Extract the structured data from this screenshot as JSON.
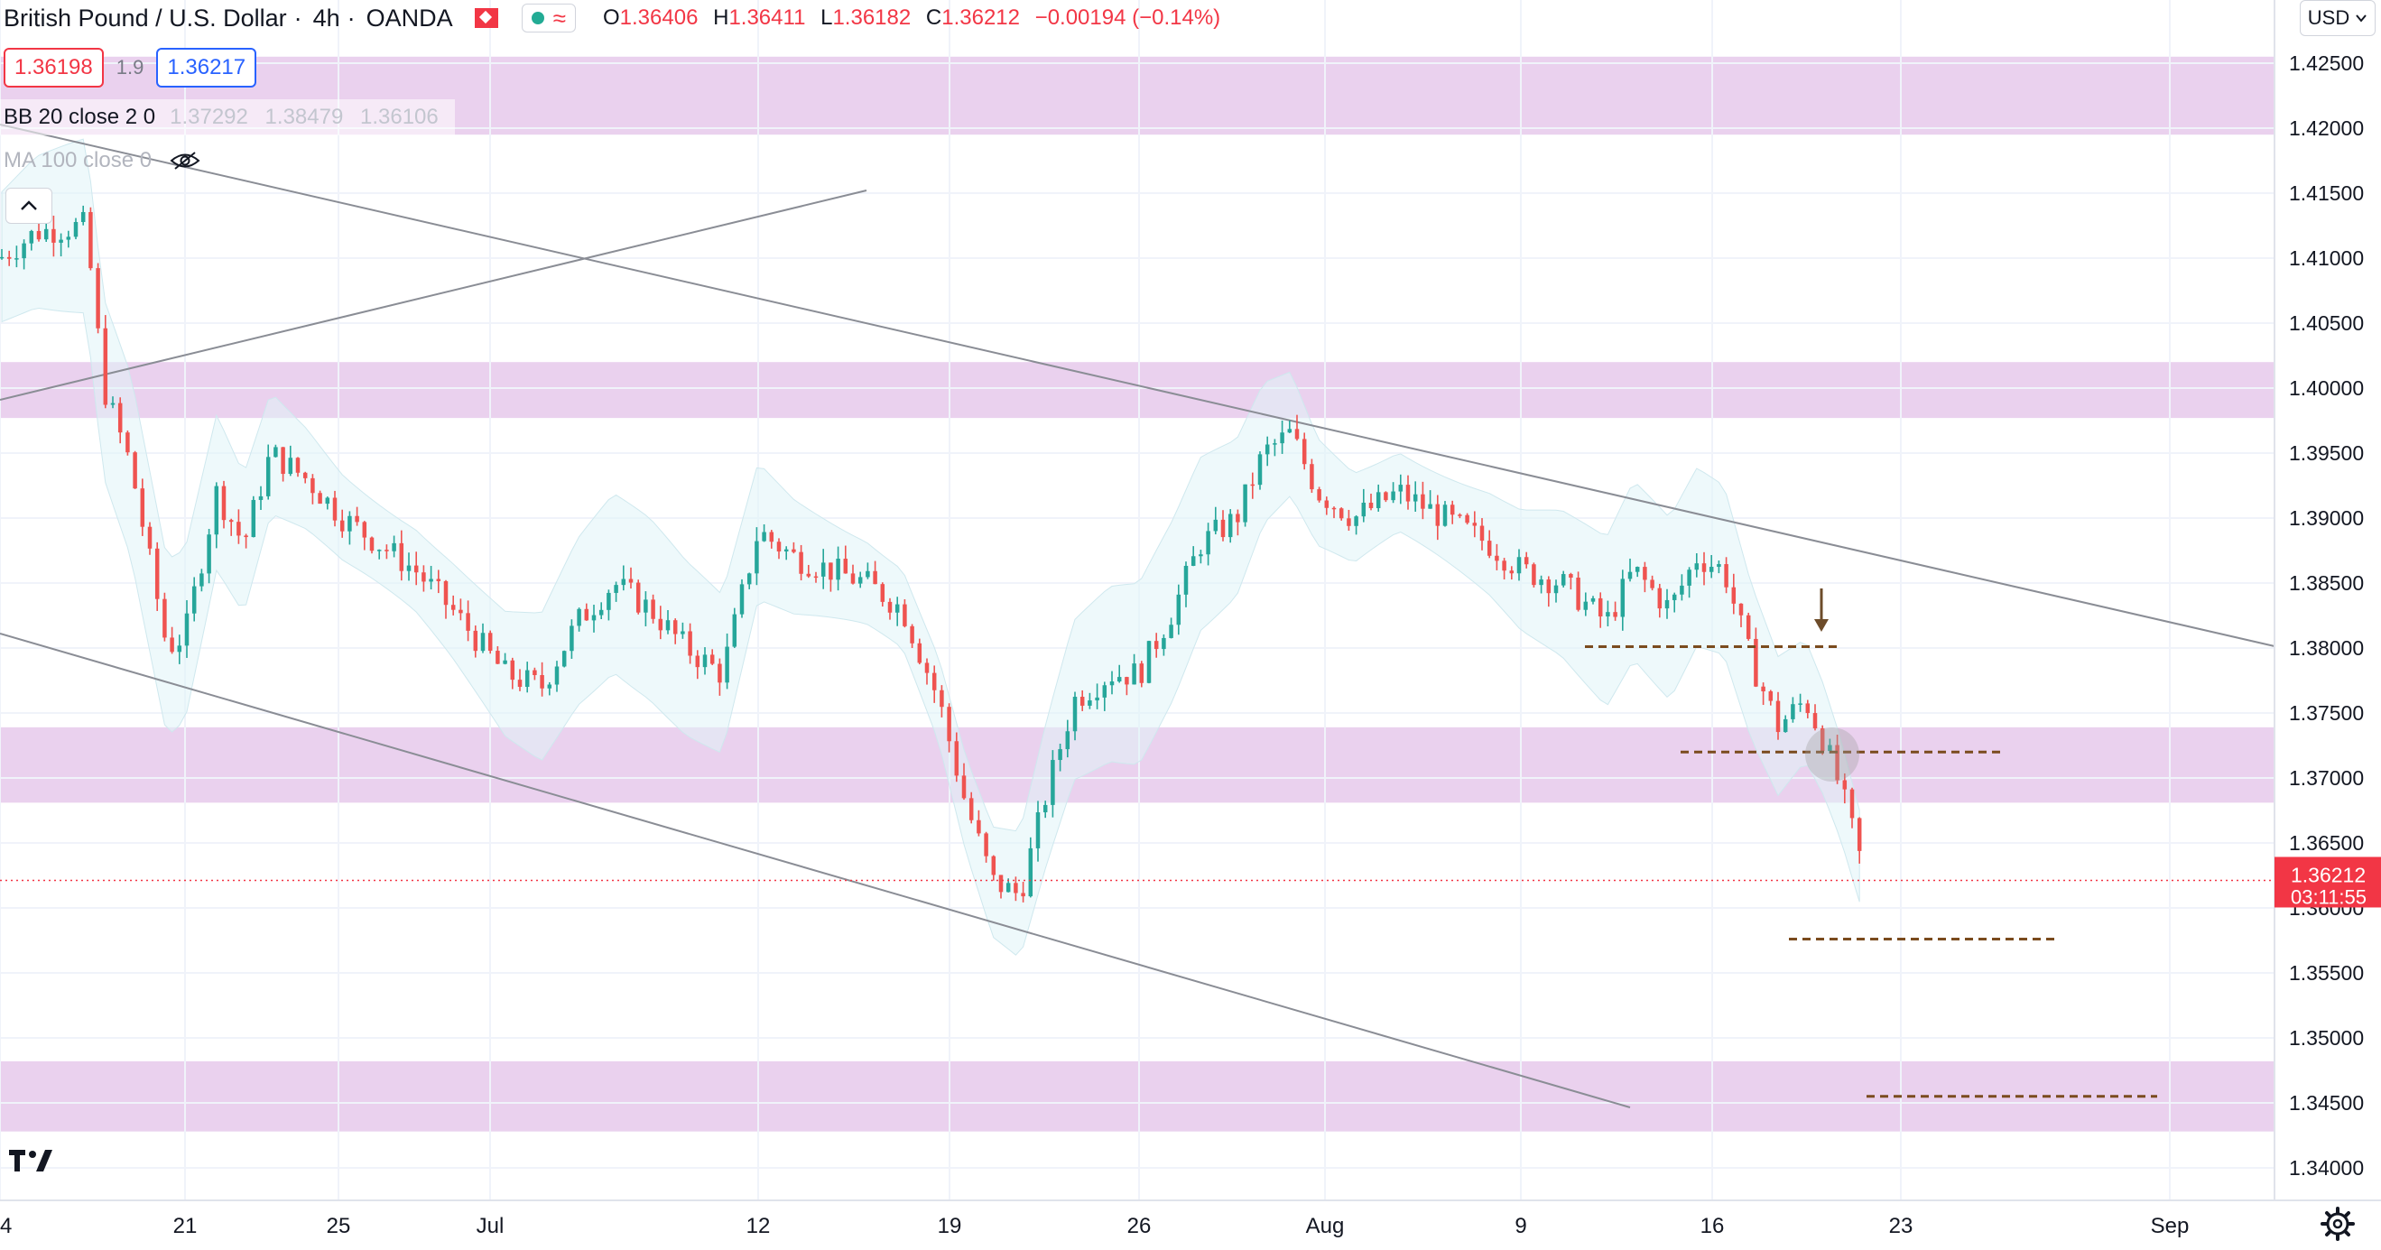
{
  "header": {
    "symbol_name": "British Pound / U.S. Dollar",
    "interval": "4h",
    "exchange": "OANDA",
    "ohlc": {
      "o_label": "O",
      "o_value": "1.36406",
      "h_label": "H",
      "h_value": "1.36411",
      "l_label": "L",
      "l_value": "1.36182",
      "c_label": "C",
      "c_value": "1.36212",
      "change": "−0.00194 (−0.14%)"
    },
    "market_status_icon": "market-open-dot-icon",
    "chart_mode_icon": "wave-icon",
    "flag_icon": "flag-icon"
  },
  "trade": {
    "bid": "1.36198",
    "spread": "1.9",
    "ask": "1.36217"
  },
  "indicators": {
    "bb": {
      "name": "BB 20 close 2 0",
      "values": [
        "1.37292",
        "1.38479",
        "1.36106"
      ]
    },
    "ma": {
      "name": "MA 100 close 0",
      "visibility_icon": "eye-crossed-icon"
    }
  },
  "currency_selector": {
    "label": "USD"
  },
  "price_scale": {
    "labels": [
      "1.42500",
      "1.42000",
      "1.41500",
      "1.41000",
      "1.40500",
      "1.40000",
      "1.39500",
      "1.39000",
      "1.38500",
      "1.38000",
      "1.37500",
      "1.37000",
      "1.36500",
      "1.36000",
      "1.35500",
      "1.35000",
      "1.34500",
      "1.34000"
    ],
    "current_price": "1.36212",
    "countdown": "03:11:55"
  },
  "time_scale": {
    "labels": [
      "4",
      "21",
      "25",
      "Jul",
      "12",
      "19",
      "26",
      "Aug",
      "9",
      "16",
      "23",
      "Sep"
    ]
  },
  "colors": {
    "up": "#26a69a",
    "down": "#ef5350",
    "zone": "#e1bee7",
    "bb_fill": "#e0f4f7",
    "dashed_level": "#7a4b1e",
    "trendline": "#8a8d95",
    "price_line": "#f23645"
  },
  "chart_data": {
    "type": "candlestick",
    "price_axis": {
      "range": [
        1.3375,
        1.4305
      ],
      "unit": "USD"
    },
    "symbol": "British Pound / U.S. Dollar",
    "support_resistance_zones": [
      {
        "from": 1.4195,
        "to": 1.4255
      },
      {
        "from": 1.3977,
        "to": 1.402
      },
      {
        "from": 1.3681,
        "to": 1.3739
      },
      {
        "from": 1.3428,
        "to": 1.3482
      }
    ],
    "horizontal_levels": [
      1.3801,
      1.372,
      1.3576,
      1.3455
    ],
    "current_price": 1.36212
  },
  "toolbar": {
    "collapse_icon": "chevron-up-icon",
    "logo_icon": "tradingview-logo-icon",
    "settings_icon": "gear-icon"
  }
}
